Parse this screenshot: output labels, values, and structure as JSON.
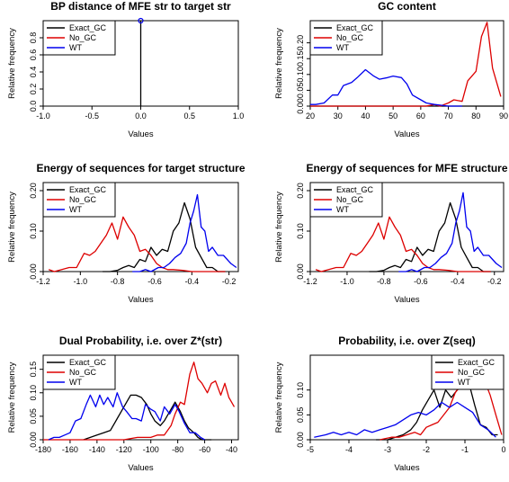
{
  "colors": {
    "Exact_GC": "#000000",
    "No_GC": "#dd0000",
    "WT": "#0000ee"
  },
  "chart_data": [
    {
      "type": "line",
      "title": "BP distance of MFE str to target str",
      "xlabel": "Values",
      "ylabel": "Relative frequency",
      "xlim": [
        -1.0,
        1.0
      ],
      "ylim": [
        0,
        1.0
      ],
      "xticks": [
        -1.0,
        -0.5,
        0.0,
        0.5,
        1.0
      ],
      "xtick_labels": [
        "-1.0",
        "-0.5",
        "0.0",
        "0.5",
        "1.0"
      ],
      "yticks": [
        0.0,
        0.2,
        0.4,
        0.6,
        0.8
      ],
      "ytick_labels": [
        "0.0",
        "0.2",
        "0.4",
        "0.6",
        "0.8"
      ],
      "legend_position": "top-left",
      "grid": false,
      "series": [
        {
          "name": "Exact_GC",
          "x": [
            0,
            0
          ],
          "y": [
            0,
            1.0
          ]
        },
        {
          "name": "No_GC",
          "x": [],
          "y": []
        },
        {
          "name": "WT",
          "x": [
            0
          ],
          "y": [
            1.0
          ],
          "marker": "circle"
        }
      ]
    },
    {
      "type": "line",
      "title": "GC content",
      "xlabel": "Values",
      "ylabel": "Relative frequency",
      "xlim": [
        20,
        90
      ],
      "ylim": [
        0,
        0.27
      ],
      "xticks": [
        20,
        30,
        40,
        50,
        60,
        70,
        80,
        90
      ],
      "xtick_labels": [
        "20",
        "30",
        "40",
        "50",
        "60",
        "70",
        "80",
        "90"
      ],
      "yticks": [
        0.0,
        0.05,
        0.1,
        0.15,
        0.2
      ],
      "ytick_labels": [
        "0.00",
        "0.05",
        "0.10",
        "0.15",
        "0.20"
      ],
      "legend_position": "top-left",
      "grid": false,
      "series": [
        {
          "name": "Exact_GC",
          "x": [
            20,
            90
          ],
          "y": [
            0,
            0
          ]
        },
        {
          "name": "No_GC",
          "x": [
            20,
            62,
            65,
            67,
            70,
            72,
            75,
            77,
            80,
            82,
            84,
            86,
            89
          ],
          "y": [
            0,
            0,
            0.005,
            0,
            0.01,
            0.02,
            0.015,
            0.08,
            0.11,
            0.22,
            0.265,
            0.12,
            0.03
          ]
        },
        {
          "name": "WT",
          "x": [
            20,
            22,
            25,
            28,
            30,
            32,
            35,
            37,
            40,
            43,
            45,
            48,
            50,
            53,
            55,
            57,
            60,
            62,
            65,
            67,
            70,
            72,
            75
          ],
          "y": [
            0.005,
            0.005,
            0.01,
            0.035,
            0.035,
            0.065,
            0.075,
            0.09,
            0.115,
            0.095,
            0.085,
            0.09,
            0.095,
            0.09,
            0.07,
            0.035,
            0.02,
            0.01,
            0.005,
            0.003,
            0,
            0,
            0
          ]
        }
      ]
    },
    {
      "type": "line",
      "title": "Energy of sequences for target structure",
      "xlabel": "Values",
      "ylabel": "Relative frequency",
      "xlim": [
        -1.2,
        -0.15
      ],
      "ylim": [
        0,
        0.22
      ],
      "xticks": [
        -1.2,
        -1.0,
        -0.8,
        -0.6,
        -0.4,
        -0.2
      ],
      "xtick_labels": [
        "-1.2",
        "-1.0",
        "-0.8",
        "-0.6",
        "-0.4",
        "-0.2"
      ],
      "yticks": [
        0.0,
        0.1,
        0.2
      ],
      "ytick_labels": [
        "0.00",
        "0.10",
        "0.20"
      ],
      "legend_position": "top-left",
      "grid": false,
      "series": [
        {
          "name": "Exact_GC",
          "x": [
            -0.88,
            -0.84,
            -0.8,
            -0.77,
            -0.74,
            -0.71,
            -0.68,
            -0.65,
            -0.62,
            -0.59,
            -0.56,
            -0.53,
            -0.5,
            -0.47,
            -0.44,
            -0.41,
            -0.38,
            -0.35,
            -0.32,
            -0.29,
            -0.26,
            -0.22
          ],
          "y": [
            0,
            0,
            0.003,
            0.01,
            0.015,
            0.01,
            0.03,
            0.025,
            0.06,
            0.04,
            0.055,
            0.05,
            0.1,
            0.12,
            0.17,
            0.13,
            0.06,
            0.035,
            0.01,
            0.01,
            0,
            0
          ]
        },
        {
          "name": "No_GC",
          "x": [
            -1.17,
            -1.14,
            -1.1,
            -1.06,
            -1.02,
            -0.98,
            -0.95,
            -0.92,
            -0.89,
            -0.86,
            -0.83,
            -0.8,
            -0.77,
            -0.74,
            -0.71,
            -0.68,
            -0.65,
            -0.62,
            -0.59,
            -0.56,
            -0.53,
            -0.5,
            -0.45,
            -0.4,
            -0.35,
            -0.3,
            -0.22
          ],
          "y": [
            0.005,
            0,
            0.005,
            0.01,
            0.01,
            0.045,
            0.04,
            0.05,
            0.07,
            0.09,
            0.12,
            0.08,
            0.135,
            0.11,
            0.09,
            0.05,
            0.055,
            0.04,
            0.02,
            0.01,
            0.005,
            0.005,
            0.003,
            0,
            0,
            0,
            0
          ]
        },
        {
          "name": "WT",
          "x": [
            -0.72,
            -0.68,
            -0.65,
            -0.62,
            -0.58,
            -0.55,
            -0.52,
            -0.49,
            -0.46,
            -0.43,
            -0.41,
            -0.39,
            -0.37,
            -0.35,
            -0.33,
            -0.31,
            -0.29,
            -0.26,
            -0.23,
            -0.19,
            -0.16
          ],
          "y": [
            0,
            0,
            0.005,
            0,
            0.01,
            0.01,
            0.02,
            0.035,
            0.045,
            0.07,
            0.12,
            0.15,
            0.19,
            0.11,
            0.1,
            0.05,
            0.06,
            0.04,
            0.04,
            0.02,
            0.01
          ]
        }
      ]
    },
    {
      "type": "line",
      "title": "Energy of sequences for MFE structure",
      "xlabel": "Values",
      "ylabel": "Relative frequency",
      "xlim": [
        -1.2,
        -0.15
      ],
      "ylim": [
        0,
        0.22
      ],
      "xticks": [
        -1.2,
        -1.0,
        -0.8,
        -0.6,
        -0.4,
        -0.2
      ],
      "xtick_labels": [
        "-1.2",
        "-1.0",
        "-0.8",
        "-0.6",
        "-0.4",
        "-0.2"
      ],
      "yticks": [
        0.0,
        0.1,
        0.2
      ],
      "ytick_labels": [
        "0.00",
        "0.10",
        "0.20"
      ],
      "legend_position": "top-left",
      "grid": false,
      "series": [
        {
          "name": "Exact_GC",
          "x": [
            -0.88,
            -0.84,
            -0.8,
            -0.77,
            -0.74,
            -0.71,
            -0.68,
            -0.65,
            -0.62,
            -0.59,
            -0.56,
            -0.53,
            -0.5,
            -0.47,
            -0.44,
            -0.41,
            -0.38,
            -0.35,
            -0.32,
            -0.29,
            -0.26,
            -0.22
          ],
          "y": [
            0,
            0,
            0.003,
            0.01,
            0.015,
            0.01,
            0.03,
            0.025,
            0.06,
            0.04,
            0.055,
            0.05,
            0.1,
            0.12,
            0.17,
            0.13,
            0.06,
            0.035,
            0.01,
            0.01,
            0,
            0
          ]
        },
        {
          "name": "No_GC",
          "x": [
            -1.17,
            -1.14,
            -1.1,
            -1.06,
            -1.02,
            -0.98,
            -0.95,
            -0.92,
            -0.89,
            -0.86,
            -0.83,
            -0.8,
            -0.77,
            -0.74,
            -0.71,
            -0.68,
            -0.65,
            -0.62,
            -0.59,
            -0.56,
            -0.53,
            -0.5,
            -0.45,
            -0.4,
            -0.35,
            -0.3,
            -0.22
          ],
          "y": [
            0.005,
            0,
            0.005,
            0.01,
            0.01,
            0.045,
            0.04,
            0.05,
            0.07,
            0.09,
            0.12,
            0.08,
            0.135,
            0.11,
            0.09,
            0.05,
            0.055,
            0.04,
            0.02,
            0.01,
            0.005,
            0.005,
            0.003,
            0,
            0,
            0,
            0
          ]
        },
        {
          "name": "WT",
          "x": [
            -0.72,
            -0.68,
            -0.65,
            -0.62,
            -0.58,
            -0.55,
            -0.52,
            -0.49,
            -0.46,
            -0.43,
            -0.41,
            -0.39,
            -0.37,
            -0.35,
            -0.33,
            -0.31,
            -0.29,
            -0.26,
            -0.23,
            -0.19,
            -0.16
          ],
          "y": [
            0,
            0,
            0.005,
            0,
            0.01,
            0.01,
            0.02,
            0.035,
            0.045,
            0.07,
            0.12,
            0.15,
            0.195,
            0.11,
            0.1,
            0.05,
            0.06,
            0.04,
            0.04,
            0.02,
            0.01
          ]
        }
      ]
    },
    {
      "type": "line",
      "title": "Dual Probability, i.e. over Z*(str)",
      "xlabel": "Values",
      "ylabel": "Relative frequency",
      "xlim": [
        -180,
        -35
      ],
      "ylim": [
        0,
        0.18
      ],
      "xticks": [
        -180,
        -160,
        -140,
        -120,
        -100,
        -80,
        -60,
        -40
      ],
      "xtick_labels": [
        "-180",
        "-160",
        "-140",
        "-120",
        "-100",
        "-80",
        "-60",
        "-40"
      ],
      "yticks": [
        0.0,
        0.05,
        0.1,
        0.15
      ],
      "ytick_labels": [
        "0.00",
        "0.05",
        "0.10",
        "0.15"
      ],
      "legend_position": "top-left",
      "grid": false,
      "series": [
        {
          "name": "Exact_GC",
          "x": [
            -150,
            -145,
            -140,
            -135,
            -130,
            -125,
            -122,
            -118,
            -115,
            -111,
            -107,
            -103,
            -100,
            -97,
            -93,
            -90,
            -86,
            -82,
            -78,
            -75,
            -72,
            -68,
            -65,
            -62,
            -55
          ],
          "y": [
            0,
            0.005,
            0.01,
            0.015,
            0.02,
            0.045,
            0.06,
            0.08,
            0.095,
            0.095,
            0.09,
            0.075,
            0.055,
            0.04,
            0.03,
            0.04,
            0.06,
            0.08,
            0.06,
            0.04,
            0.025,
            0.015,
            0.005,
            0,
            0
          ]
        },
        {
          "name": "No_GC",
          "x": [
            -180,
            -120,
            -110,
            -100,
            -95,
            -90,
            -85,
            -82,
            -78,
            -75,
            -71,
            -68,
            -65,
            -62,
            -58,
            -55,
            -52,
            -48,
            -45,
            -42,
            -38
          ],
          "y": [
            0,
            0,
            0.005,
            0.005,
            0.01,
            0.01,
            0.03,
            0.055,
            0.08,
            0.075,
            0.14,
            0.165,
            0.13,
            0.12,
            0.1,
            0.12,
            0.125,
            0.095,
            0.12,
            0.09,
            0.07
          ]
        },
        {
          "name": "WT",
          "x": [
            -176,
            -172,
            -168,
            -164,
            -160,
            -156,
            -152,
            -148,
            -145,
            -141,
            -138,
            -135,
            -132,
            -128,
            -125,
            -121,
            -118,
            -114,
            -111,
            -107,
            -104,
            -100,
            -97,
            -93,
            -90,
            -86,
            -82,
            -79,
            -75,
            -71,
            -67,
            -63,
            -60
          ],
          "y": [
            0,
            0.005,
            0.005,
            0.01,
            0.015,
            0.04,
            0.045,
            0.075,
            0.095,
            0.07,
            0.095,
            0.075,
            0.09,
            0.07,
            0.1,
            0.07,
            0.06,
            0.045,
            0.045,
            0.04,
            0.075,
            0.065,
            0.06,
            0.04,
            0.07,
            0.055,
            0.075,
            0.06,
            0.035,
            0.015,
            0.015,
            0.005,
            0
          ]
        }
      ]
    },
    {
      "type": "line",
      "title": "Probability, i.e. over Z(seq)",
      "xlabel": "Values",
      "ylabel": "Relative frequency",
      "xlim": [
        -5,
        0
      ],
      "ylim": [
        0,
        0.17
      ],
      "xticks": [
        -5,
        -4,
        -3,
        -2,
        -1,
        0
      ],
      "xtick_labels": [
        "-5",
        "-4",
        "-3",
        "-2",
        "-1",
        "0"
      ],
      "yticks": [
        0.0,
        0.05,
        0.1
      ],
      "ytick_labels": [
        "0.00",
        "0.05",
        "0.10"
      ],
      "legend_position": "top-right",
      "grid": false,
      "series": [
        {
          "name": "Exact_GC",
          "x": [
            -3.3,
            -3.0,
            -2.8,
            -2.6,
            -2.4,
            -2.25,
            -2.1,
            -1.95,
            -1.8,
            -1.65,
            -1.5,
            -1.35,
            -1.2,
            -1.05,
            -0.9,
            -0.75,
            -0.6,
            -0.45,
            -0.3,
            -0.15
          ],
          "y": [
            0,
            0,
            0.005,
            0.01,
            0.02,
            0.035,
            0.06,
            0.08,
            0.1,
            0.065,
            0.1,
            0.085,
            0.1,
            0.11,
            0.115,
            0.07,
            0.03,
            0.025,
            0.01,
            0.01
          ]
        },
        {
          "name": "No_GC",
          "x": [
            -3.2,
            -2.9,
            -2.7,
            -2.5,
            -2.3,
            -2.15,
            -2.0,
            -1.85,
            -1.7,
            -1.55,
            -1.4,
            -1.25,
            -1.1,
            -0.95,
            -0.8,
            -0.65,
            -0.5,
            -0.35,
            -0.2,
            -0.05
          ],
          "y": [
            0,
            0.005,
            0.005,
            0.01,
            0.015,
            0.01,
            0.025,
            0.03,
            0.035,
            0.05,
            0.065,
            0.095,
            0.11,
            0.14,
            0.16,
            0.145,
            0.12,
            0.09,
            0.05,
            0.01
          ]
        },
        {
          "name": "WT",
          "x": [
            -4.9,
            -4.6,
            -4.4,
            -4.2,
            -4.0,
            -3.8,
            -3.6,
            -3.4,
            -3.2,
            -3.0,
            -2.8,
            -2.6,
            -2.4,
            -2.2,
            -2.0,
            -1.8,
            -1.6,
            -1.4,
            -1.2,
            -1.0,
            -0.8,
            -0.6,
            -0.4,
            -0.2
          ],
          "y": [
            0.005,
            0.01,
            0.015,
            0.01,
            0.015,
            0.01,
            0.02,
            0.015,
            0.02,
            0.025,
            0.03,
            0.04,
            0.05,
            0.055,
            0.05,
            0.06,
            0.075,
            0.065,
            0.075,
            0.065,
            0.055,
            0.03,
            0.02,
            0.005
          ]
        }
      ]
    }
  ]
}
